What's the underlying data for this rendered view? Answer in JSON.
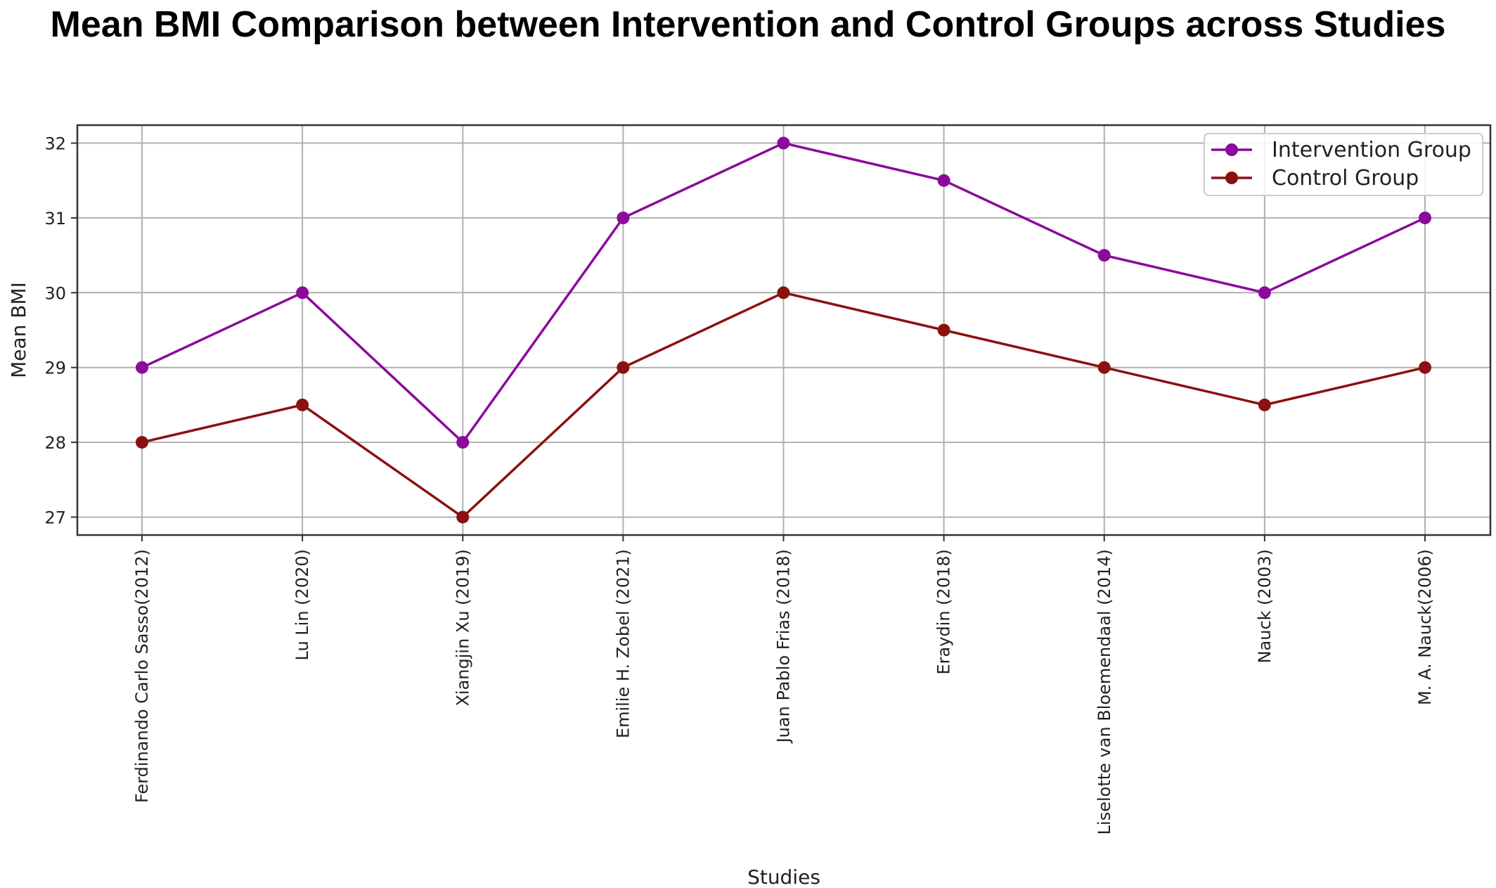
{
  "chart_data": {
    "type": "line",
    "title": "Mean BMI Comparison between Intervention and Control Groups across Studies",
    "xlabel": "Studies",
    "ylabel": "Mean BMI",
    "categories": [
      "Ferdinando Carlo Sasso(2012)",
      "Lu Lin (2020)",
      "Xiangjin Xu (2019)",
      "Emilie H. Zobel (2021)",
      "Juan Pablo Frias (2018)",
      "Eraydin (2018)",
      "Liselotte van Bloemendaal (2014)",
      "Nauck (2003)",
      "M. A. Nauck(2006)"
    ],
    "series": [
      {
        "name": "Intervention Group",
        "color": "#8b0a9b",
        "values": [
          29,
          30,
          28,
          31,
          32,
          31.5,
          30.5,
          30,
          31
        ]
      },
      {
        "name": "Control Group",
        "color": "#8b1111",
        "values": [
          28,
          28.5,
          27,
          29,
          30,
          29.5,
          29,
          28.5,
          29
        ]
      }
    ],
    "ylim": [
      26.76,
      32.24
    ],
    "yticks": [
      "27",
      "28",
      "29",
      "30",
      "31",
      "32"
    ],
    "grid": true,
    "legend_position": "top-right"
  }
}
